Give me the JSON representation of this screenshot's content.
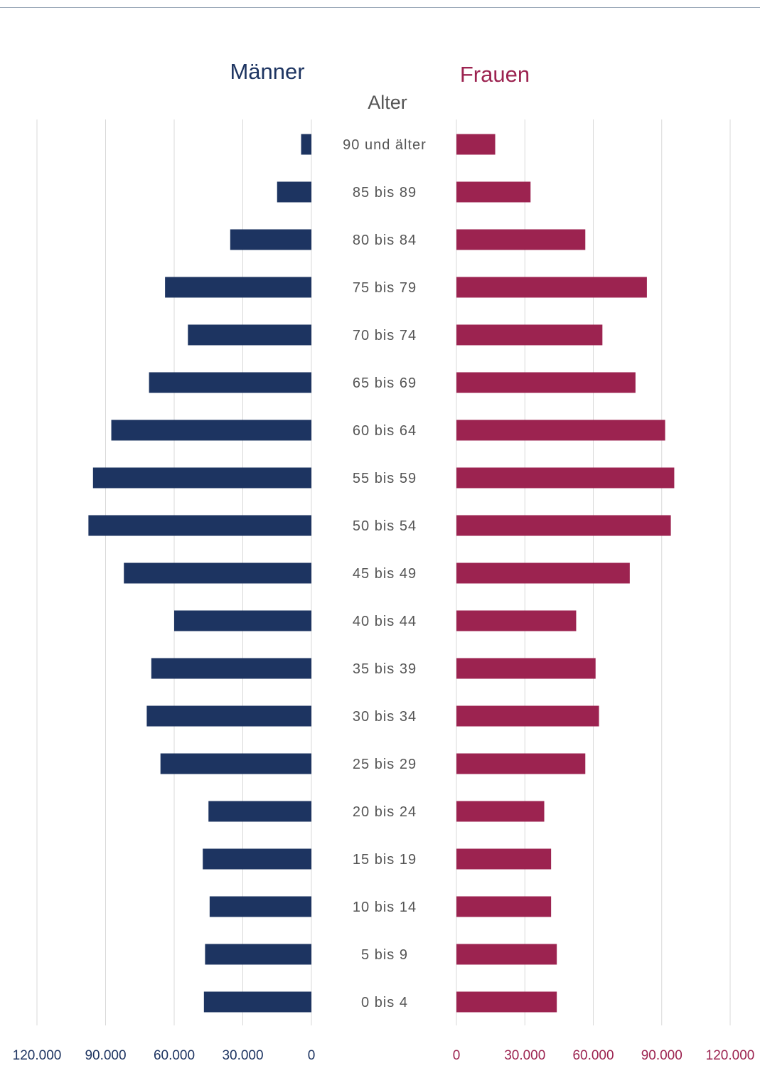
{
  "chart_data": {
    "type": "bar",
    "subtype": "population-pyramid",
    "category_axis_title": "Alter",
    "categories": [
      "90 und älter",
      "85 bis 89",
      "80 bis 84",
      "75 bis 79",
      "70 bis 74",
      "65 bis 69",
      "60 bis 64",
      "55 bis 59",
      "50 bis 54",
      "45 bis 49",
      "40 bis 44",
      "35 bis 39",
      "30 bis 34",
      "25 bis 29",
      "20 bis 24",
      "15 bis 19",
      "10 bis 14",
      "5 bis 9",
      "0 bis 4"
    ],
    "series": [
      {
        "name": "Männer",
        "color": "#1d3461",
        "values": [
          4500,
          15000,
          35500,
          64000,
          54000,
          71000,
          87500,
          95500,
          97500,
          82000,
          60000,
          70000,
          72000,
          66000,
          45000,
          47500,
          44500,
          46500,
          47000
        ]
      },
      {
        "name": "Frauen",
        "color": "#9c2350",
        "values": [
          17000,
          32500,
          56500,
          83500,
          64000,
          78500,
          91500,
          95500,
          94000,
          76000,
          52500,
          61000,
          62500,
          56500,
          38500,
          41500,
          41500,
          44000,
          44000
        ]
      }
    ],
    "xlim_men": [
      0,
      120000
    ],
    "xlim_women": [
      0,
      120000
    ],
    "men_ticks": [
      "120.000",
      "90.000",
      "60.000",
      "30.000",
      "0"
    ],
    "women_ticks": [
      "0",
      "30.000",
      "60.000",
      "90.000",
      "120.000"
    ],
    "grid": true,
    "legend": "series labels above each half"
  }
}
